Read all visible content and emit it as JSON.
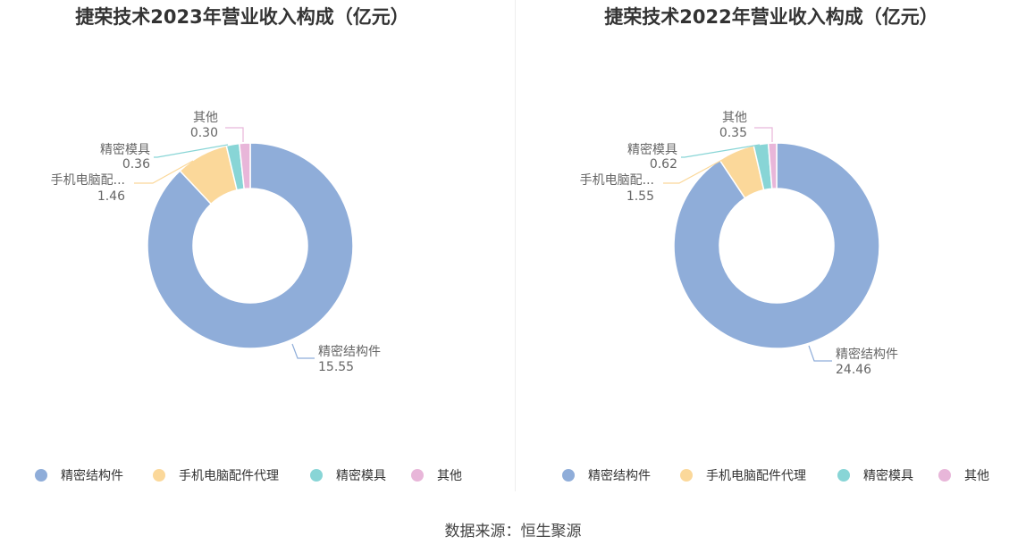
{
  "chart_data": [
    {
      "type": "pie",
      "title": "捷荣技术2023年营业收入构成（亿元）",
      "categories": [
        "精密结构件",
        "手机电脑配件代理",
        "精密模具",
        "其他"
      ],
      "slice_labels": [
        "精密结构件",
        "手机电脑配...",
        "精密模具",
        "其他"
      ],
      "values": [
        15.55,
        1.46,
        0.36,
        0.3
      ],
      "value_labels": [
        "15.55",
        "1.46",
        "0.36",
        "0.30"
      ],
      "colors": [
        "#8fadd9",
        "#fbd89a",
        "#88d5d6",
        "#e8b6d9"
      ],
      "legend_position": "bottom"
    },
    {
      "type": "pie",
      "title": "捷荣技术2022年营业收入构成（亿元）",
      "categories": [
        "精密结构件",
        "手机电脑配件代理",
        "精密模具",
        "其他"
      ],
      "slice_labels": [
        "精密结构件",
        "手机电脑配...",
        "精密模具",
        "其他"
      ],
      "values": [
        24.46,
        1.55,
        0.62,
        0.35
      ],
      "value_labels": [
        "24.46",
        "1.55",
        "0.62",
        "0.35"
      ],
      "colors": [
        "#8fadd9",
        "#fbd89a",
        "#88d5d6",
        "#e8b6d9"
      ],
      "legend_position": "bottom"
    }
  ],
  "footer": {
    "source": "数据来源：恒生聚源"
  }
}
